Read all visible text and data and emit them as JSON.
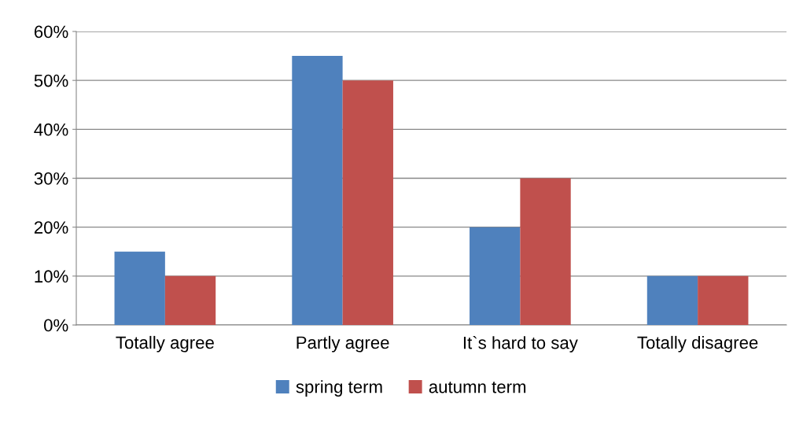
{
  "chart_data": {
    "type": "bar",
    "categories": [
      "Totally agree",
      "Partly agree",
      "It`s hard to say",
      "Totally disagree"
    ],
    "series": [
      {
        "name": "spring term",
        "color": "#4f81bd",
        "values": [
          15,
          55,
          20,
          10
        ]
      },
      {
        "name": "autumn term",
        "color": "#c0504d",
        "values": [
          10,
          50,
          30,
          10
        ]
      }
    ],
    "ylim": [
      0,
      60
    ],
    "yticks": [
      {
        "value": 0,
        "label": "0%"
      },
      {
        "value": 10,
        "label": "10%"
      },
      {
        "value": 20,
        "label": "20%"
      },
      {
        "value": 30,
        "label": "30%"
      },
      {
        "value": 40,
        "label": "40%"
      },
      {
        "value": 50,
        "label": "50%"
      },
      {
        "value": 60,
        "label": "60%"
      }
    ],
    "grid": "y",
    "legend": "bottom"
  }
}
